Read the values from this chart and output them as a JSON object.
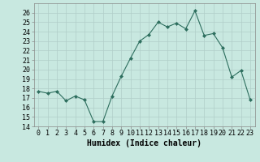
{
  "x": [
    0,
    1,
    2,
    3,
    4,
    5,
    6,
    7,
    8,
    9,
    10,
    11,
    12,
    13,
    14,
    15,
    16,
    17,
    18,
    19,
    20,
    21,
    22,
    23
  ],
  "y": [
    17.7,
    17.5,
    17.7,
    16.7,
    17.2,
    16.8,
    14.5,
    14.5,
    17.2,
    19.3,
    21.2,
    23.0,
    23.7,
    25.0,
    24.5,
    24.9,
    24.3,
    26.2,
    23.6,
    23.8,
    22.3,
    19.2,
    19.9,
    16.8
  ],
  "xlabel": "Humidex (Indice chaleur)",
  "xlim": [
    -0.5,
    23.5
  ],
  "ylim": [
    14,
    27
  ],
  "yticks": [
    14,
    15,
    16,
    17,
    18,
    19,
    20,
    21,
    22,
    23,
    24,
    25,
    26
  ],
  "xtick_labels": [
    "0",
    "1",
    "2",
    "3",
    "4",
    "5",
    "6",
    "7",
    "8",
    "9",
    "10",
    "11",
    "12",
    "13",
    "14",
    "15",
    "16",
    "17",
    "18",
    "19",
    "20",
    "21",
    "22",
    "23"
  ],
  "line_color": "#2d6e5e",
  "marker": "D",
  "marker_size": 2.0,
  "bg_color": "#c8e8e0",
  "grid_color": "#b0cec8",
  "label_fontsize": 7,
  "tick_fontsize": 6
}
